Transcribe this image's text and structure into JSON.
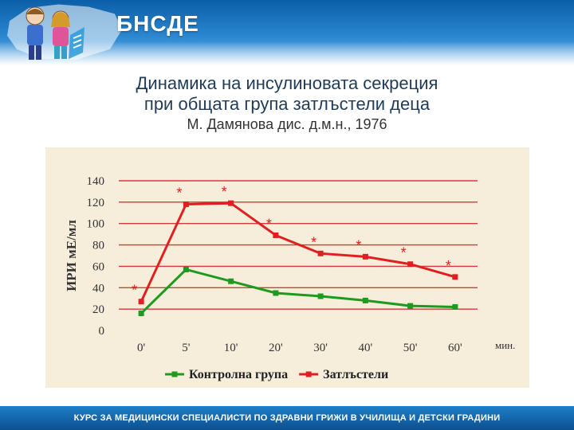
{
  "header": {
    "brand": "БНСДЕ"
  },
  "slide": {
    "title_line1": "Динамика на инсулиновата секреция",
    "title_line2": "при общата група затлъстели деца",
    "subtitle": "М. Дамянова дис. д.м.н., 1976"
  },
  "footer": {
    "text": "КУРС ЗА МЕДИЦИНСКИ СПЕЦИАЛИСТИ ПО ЗДРАВНИ ГРИЖИ В УЧИЛИЩА И ДЕТСКИ ГРАДИНИ"
  },
  "colors": {
    "control": "#1e9a1e",
    "obese": "#e02020",
    "grid": "#d23a3a",
    "panel": "#f6eedb",
    "header": "#1a6fb8"
  },
  "chart_data": {
    "type": "line",
    "categories": [
      "0'",
      "5'",
      "10'",
      "20'",
      "30'",
      "40'",
      "50'",
      "60'"
    ],
    "xlabel": "мин.",
    "ylabel": "ИРИ мЕ/мл",
    "ylim": [
      0,
      140
    ],
    "yticks": [
      0,
      20,
      40,
      60,
      80,
      100,
      120,
      140
    ],
    "grid": true,
    "legend_position": "bottom",
    "series": [
      {
        "name": "Контролна група",
        "color": "#1e9a1e",
        "values": [
          16,
          57,
          46,
          35,
          32,
          28,
          23,
          22
        ]
      },
      {
        "name": "Затлъстели",
        "color": "#e02020",
        "values": [
          27,
          118,
          119,
          89,
          72,
          69,
          62,
          50
        ],
        "significance_markers": [
          "*",
          "*",
          "*",
          "*",
          "*",
          "*",
          "*",
          "*"
        ]
      }
    ]
  }
}
